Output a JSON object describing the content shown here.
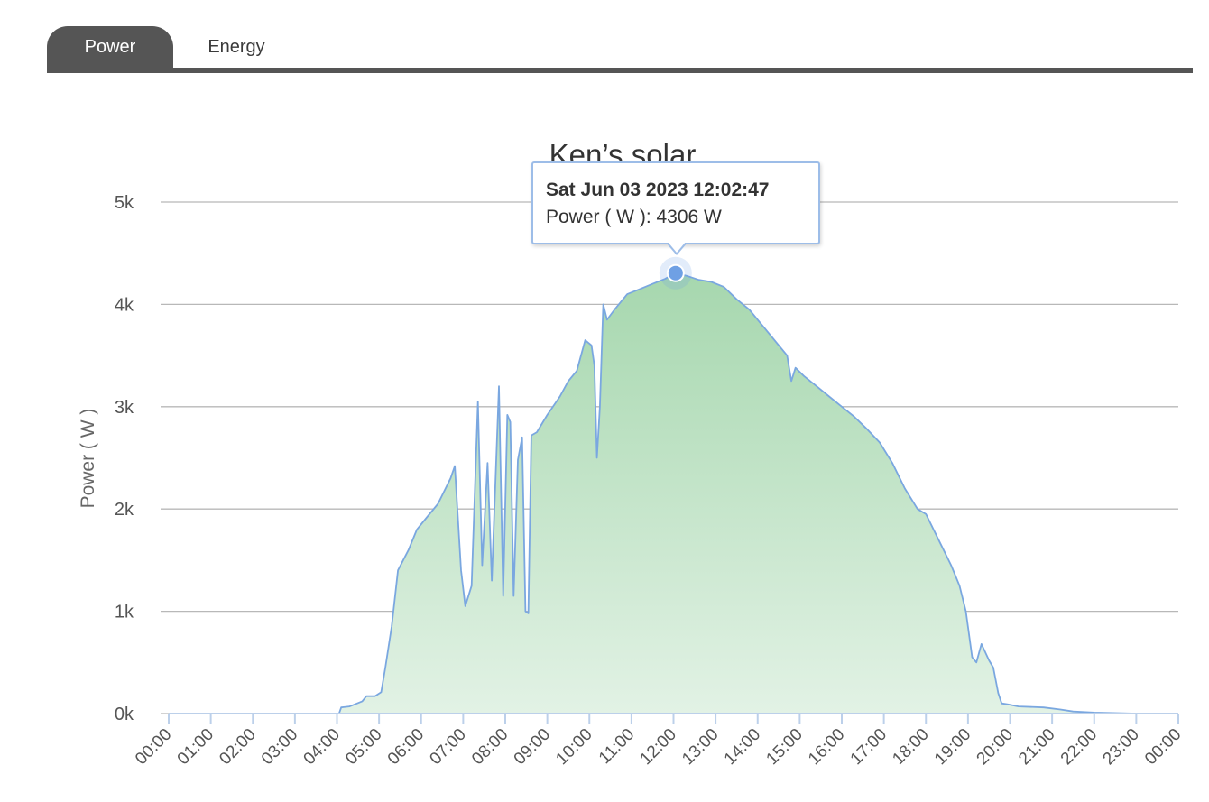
{
  "tabs": [
    {
      "label": "Power",
      "active": true
    },
    {
      "label": "Energy",
      "active": false
    }
  ],
  "tooltip": {
    "title": "Sat Jun 03 2023 12:02:47",
    "series_label": "Power ( W ): 4306 W"
  },
  "colors": {
    "line": "#7aa7e0",
    "fill_top": "#a6d7ae",
    "fill_bottom": "#e2f2e5",
    "grid": "#b8b8b8",
    "axis": "#bcd0ea",
    "text": "#555555",
    "marker": "#6fa0e4",
    "tab_active": "#555555"
  },
  "chart_data": {
    "type": "area",
    "title": "Ken’s solar",
    "ylabel": "Power ( W )",
    "xlabel": "",
    "x_unit": "hour of day",
    "xlim": [
      0,
      24
    ],
    "ylim": [
      0,
      5000
    ],
    "y_ticks": [
      0,
      1000,
      2000,
      3000,
      4000,
      5000
    ],
    "y_tick_labels": [
      "0k",
      "1k",
      "2k",
      "3k",
      "4k",
      "5k"
    ],
    "x_tick_labels": [
      "00:00",
      "01:00",
      "02:00",
      "03:00",
      "04:00",
      "05:00",
      "06:00",
      "07:00",
      "08:00",
      "09:00",
      "10:00",
      "11:00",
      "12:00",
      "13:00",
      "14:00",
      "15:00",
      "16:00",
      "17:00",
      "18:00",
      "19:00",
      "20:00",
      "21:00",
      "22:00",
      "23:00",
      "00:00"
    ],
    "grid": true,
    "highlight": {
      "x": 12.05,
      "y": 4306
    },
    "series": [
      {
        "points": [
          [
            0.0,
            0
          ],
          [
            4.05,
            0
          ],
          [
            4.1,
            60
          ],
          [
            4.3,
            70
          ],
          [
            4.6,
            120
          ],
          [
            4.7,
            170
          ],
          [
            4.9,
            170
          ],
          [
            5.05,
            210
          ],
          [
            5.15,
            450
          ],
          [
            5.3,
            850
          ],
          [
            5.45,
            1400
          ],
          [
            5.7,
            1600
          ],
          [
            5.9,
            1800
          ],
          [
            6.1,
            1900
          ],
          [
            6.4,
            2050
          ],
          [
            6.7,
            2300
          ],
          [
            6.8,
            2420
          ],
          [
            6.95,
            1400
          ],
          [
            7.05,
            1050
          ],
          [
            7.2,
            1250
          ],
          [
            7.35,
            3050
          ],
          [
            7.45,
            1450
          ],
          [
            7.58,
            2450
          ],
          [
            7.68,
            1300
          ],
          [
            7.85,
            3200
          ],
          [
            7.95,
            1150
          ],
          [
            8.05,
            2920
          ],
          [
            8.12,
            2850
          ],
          [
            8.2,
            1150
          ],
          [
            8.3,
            2480
          ],
          [
            8.4,
            2700
          ],
          [
            8.48,
            1000
          ],
          [
            8.55,
            980
          ],
          [
            8.62,
            2720
          ],
          [
            8.75,
            2750
          ],
          [
            9.0,
            2920
          ],
          [
            9.3,
            3100
          ],
          [
            9.5,
            3250
          ],
          [
            9.7,
            3350
          ],
          [
            9.9,
            3650
          ],
          [
            10.05,
            3600
          ],
          [
            10.12,
            3400
          ],
          [
            10.18,
            2500
          ],
          [
            10.25,
            3000
          ],
          [
            10.33,
            4000
          ],
          [
            10.42,
            3850
          ],
          [
            10.6,
            3950
          ],
          [
            10.9,
            4100
          ],
          [
            11.2,
            4150
          ],
          [
            11.5,
            4200
          ],
          [
            11.8,
            4250
          ],
          [
            12.05,
            4306
          ],
          [
            12.3,
            4280
          ],
          [
            12.6,
            4240
          ],
          [
            12.9,
            4220
          ],
          [
            13.2,
            4170
          ],
          [
            13.5,
            4050
          ],
          [
            13.8,
            3950
          ],
          [
            14.1,
            3800
          ],
          [
            14.4,
            3650
          ],
          [
            14.7,
            3500
          ],
          [
            14.8,
            3250
          ],
          [
            14.9,
            3380
          ],
          [
            15.1,
            3300
          ],
          [
            15.4,
            3200
          ],
          [
            15.7,
            3100
          ],
          [
            16.0,
            3000
          ],
          [
            16.3,
            2900
          ],
          [
            16.6,
            2780
          ],
          [
            16.9,
            2650
          ],
          [
            17.2,
            2450
          ],
          [
            17.5,
            2200
          ],
          [
            17.8,
            2000
          ],
          [
            18.0,
            1950
          ],
          [
            18.3,
            1700
          ],
          [
            18.6,
            1450
          ],
          [
            18.8,
            1250
          ],
          [
            18.95,
            1000
          ],
          [
            19.1,
            550
          ],
          [
            19.2,
            500
          ],
          [
            19.32,
            680
          ],
          [
            19.5,
            520
          ],
          [
            19.6,
            450
          ],
          [
            19.72,
            200
          ],
          [
            19.8,
            100
          ],
          [
            19.95,
            90
          ],
          [
            20.2,
            70
          ],
          [
            20.8,
            60
          ],
          [
            21.2,
            40
          ],
          [
            21.5,
            20
          ],
          [
            22.0,
            10
          ],
          [
            23.0,
            0
          ]
        ]
      }
    ]
  }
}
